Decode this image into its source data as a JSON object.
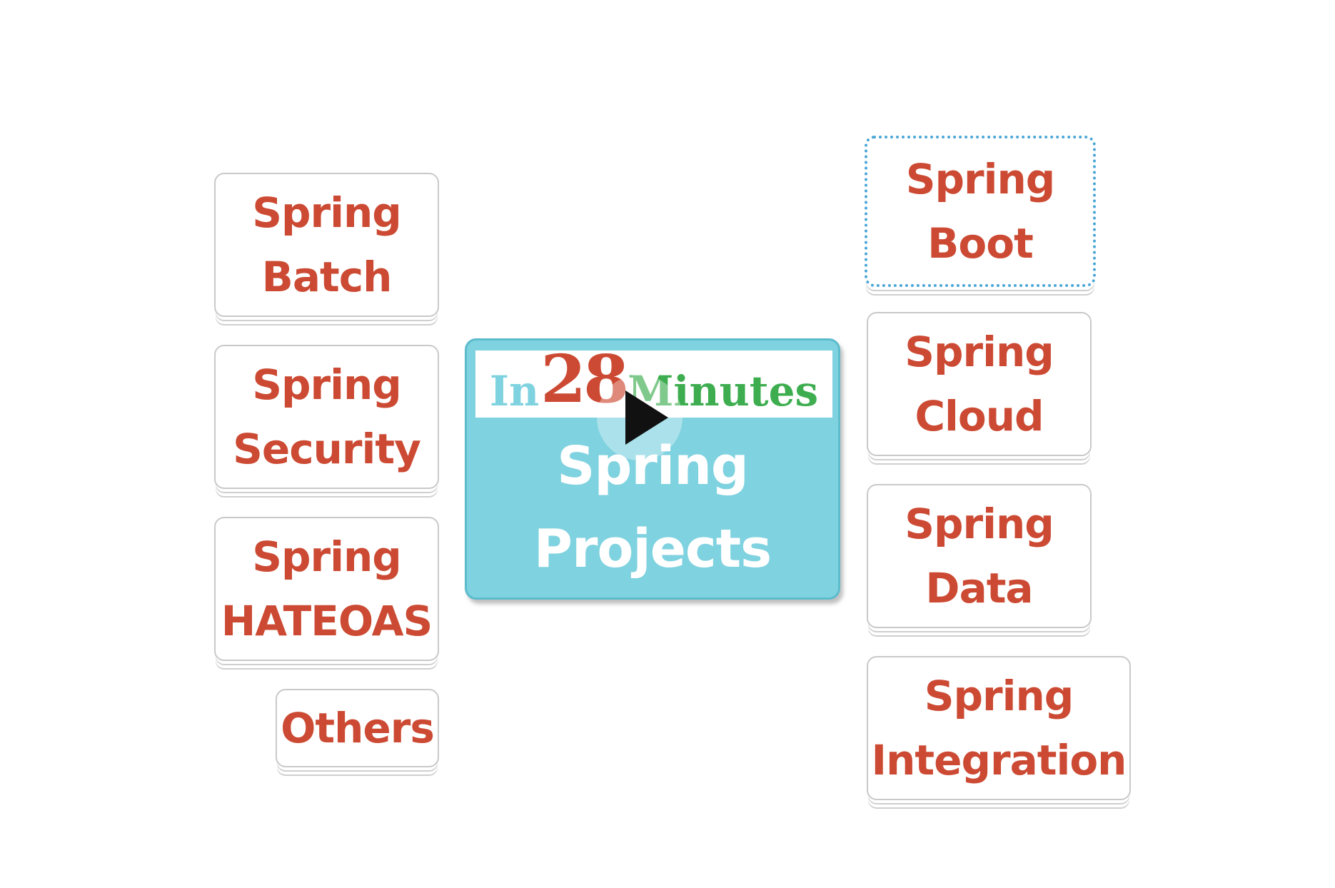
{
  "center": {
    "logo": {
      "in": "In",
      "number": "28",
      "minutes": "Minutes"
    },
    "line1": "Spring",
    "line2": "Projects"
  },
  "left_nodes": [
    {
      "line1": "Spring",
      "line2": "Batch"
    },
    {
      "line1": "Spring",
      "line2": "Security"
    },
    {
      "line1": "Spring",
      "line2": "HATEOAS"
    },
    {
      "line1": "Others"
    }
  ],
  "right_nodes": [
    {
      "line1": "Spring",
      "line2": "Boot",
      "selected": true
    },
    {
      "line1": "Spring",
      "line2": "Cloud"
    },
    {
      "line1": "Spring",
      "line2": "Data"
    },
    {
      "line1": "Spring",
      "line2": "Integration"
    }
  ],
  "colors": {
    "node_text": "#cc4a33",
    "center_fill": "#7fd2df",
    "logo_green": "#3dad4f",
    "selection_outline": "#49a6d6"
  },
  "icons": {
    "play": "play-icon"
  }
}
